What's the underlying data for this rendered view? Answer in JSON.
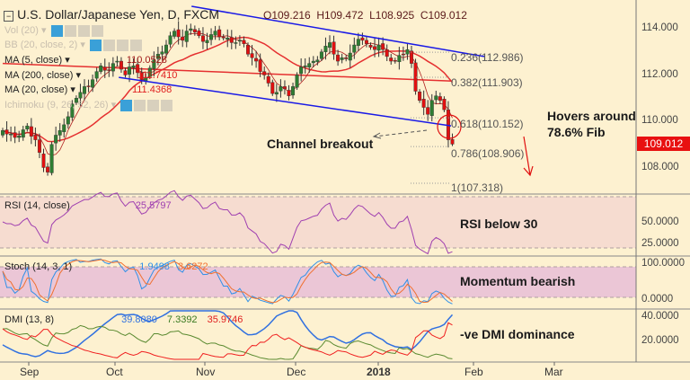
{
  "header": {
    "symbol": "U.S. Dollar/Japanese Yen, D, FXCM",
    "open": "O109.216",
    "high": "H109.472",
    "low": "L108.925",
    "close": "C109.012"
  },
  "legend": {
    "vol": "Vol (20)",
    "bb": "BB (20, close, 2)",
    "ma5": "MA (5, close)",
    "ma5_val": "110.0528",
    "ma200": "MA (200, close)",
    "ma200_val": "111.7410",
    "ma20": "MA (20, close)",
    "ma20_val": "111.4368",
    "ichimoku": "Ichimoku (9, 26, 52, 26)"
  },
  "price_axis": [
    "114.000",
    "112.000",
    "110.000",
    "108.000"
  ],
  "last_price": "109.012",
  "fib": [
    "0.236(112.986)",
    "0.382(111.903)",
    "0.618(110.152)",
    "0.786(108.906)",
    "1(107.318)"
  ],
  "fib_values": [
    112.986,
    111.903,
    110.152,
    108.906,
    107.318
  ],
  "annotations": {
    "breakout": "Channel breakout",
    "hovers1": "Hovers around",
    "hovers2": "78.6% Fib",
    "rsi": "RSI below 30",
    "stoch": "Momentum bearish",
    "dmi": "-ve DMI dominance"
  },
  "rsi": {
    "label": "RSI (14, close)",
    "value": "25.5797",
    "axis": [
      "50.0000",
      "25.0000"
    ]
  },
  "stoch": {
    "label": "Stoch (14, 3, 1)",
    "k": "1.9498",
    "d": "3.6272",
    "axis": [
      "100.0000",
      "0.0000"
    ]
  },
  "dmi": {
    "label": "DMI (13, 8)",
    "adx": "39.8080",
    "plus": "7.3392",
    "minus": "35.9746",
    "axis": [
      "40.0000",
      "20.0000"
    ]
  },
  "time_axis": [
    "Sep",
    "Oct",
    "Nov",
    "Dec",
    "2018",
    "Feb",
    "Mar"
  ],
  "colors": {
    "up": "#2e7d32",
    "down": "#e01010",
    "channel": "#1a1ae6",
    "ma": "#e53030",
    "rsi": "#a040b0",
    "k": "#3090e8",
    "d": "#f07030",
    "adx": "#3070e0",
    "plus": "#5a8a30",
    "minus": "#f02020"
  },
  "chart_data": {
    "type": "candlestick",
    "title": "U.S. Dollar/Japanese Yen, D, FXCM",
    "close_path_by_day": [
      [
        0,
        109.6
      ],
      [
        3,
        109.3
      ],
      [
        6,
        109.8
      ],
      [
        8,
        109.2
      ],
      [
        10,
        108.0
      ],
      [
        11,
        107.8
      ],
      [
        12,
        109.0
      ],
      [
        14,
        109.6
      ],
      [
        16,
        110.2
      ],
      [
        18,
        111.0
      ],
      [
        20,
        111.5
      ],
      [
        22,
        111.8
      ],
      [
        24,
        112.4
      ],
      [
        26,
        112.2
      ],
      [
        28,
        112.6
      ],
      [
        30,
        112.0
      ],
      [
        32,
        112.4
      ],
      [
        34,
        111.8
      ],
      [
        36,
        112.3
      ],
      [
        38,
        112.9
      ],
      [
        40,
        113.3
      ],
      [
        42,
        113.9
      ],
      [
        44,
        113.5
      ],
      [
        46,
        114.0
      ],
      [
        48,
        113.7
      ],
      [
        50,
        113.5
      ],
      [
        52,
        113.9
      ],
      [
        54,
        113.6
      ],
      [
        56,
        113.4
      ],
      [
        58,
        113.5
      ],
      [
        60,
        112.9
      ],
      [
        62,
        112.6
      ],
      [
        64,
        112.0
      ],
      [
        66,
        111.2
      ],
      [
        68,
        111.5
      ],
      [
        70,
        111.1
      ],
      [
        72,
        112.0
      ],
      [
        74,
        112.4
      ],
      [
        76,
        112.6
      ],
      [
        78,
        113.0
      ],
      [
        80,
        113.4
      ],
      [
        82,
        112.6
      ],
      [
        84,
        112.7
      ],
      [
        86,
        113.3
      ],
      [
        88,
        113.5
      ],
      [
        90,
        113.2
      ],
      [
        92,
        113.3
      ],
      [
        94,
        112.8
      ],
      [
        96,
        112.6
      ],
      [
        98,
        112.9
      ],
      [
        99,
        113.1
      ],
      [
        100,
        112.5
      ],
      [
        101,
        111.3
      ],
      [
        102,
        110.9
      ],
      [
        103,
        110.6
      ],
      [
        104,
        110.3
      ],
      [
        105,
        110.9
      ],
      [
        106,
        111.1
      ],
      [
        107,
        110.9
      ],
      [
        108,
        110.5
      ],
      [
        109,
        109.2
      ],
      [
        110,
        109.012
      ]
    ],
    "ma200": [
      [
        0,
        112.5
      ],
      [
        110,
        111.74
      ]
    ],
    "channel_upper": [
      [
        46.2,
        114.97
      ],
      [
        117.8,
        112.8
      ]
    ],
    "channel_lower": [
      [
        28.4,
        111.9
      ],
      [
        109.7,
        109.8
      ]
    ],
    "ylim": [
      107,
      115
    ]
  }
}
